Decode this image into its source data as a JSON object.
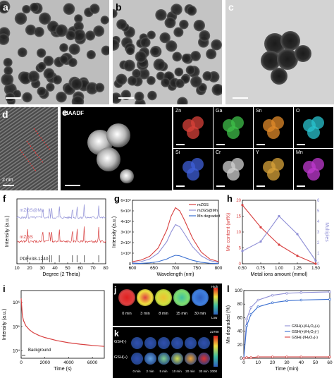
{
  "panels": {
    "a": {
      "label": "a"
    },
    "b": {
      "label": "b"
    },
    "c": {
      "label": "c"
    },
    "d": {
      "label": "d",
      "scale_text": "2 nm"
    },
    "e": {
      "label": "e",
      "haadf": "HAADF",
      "elements": [
        "Zn",
        "Ga",
        "Sn",
        "O",
        "Si",
        "Cr",
        "Y",
        "Mn"
      ],
      "element_colors": [
        "#d8413a",
        "#3fbf4a",
        "#e08a2a",
        "#29c3cf",
        "#3f5fd8",
        "#d0d0d0",
        "#d8a33a",
        "#c03ad0"
      ]
    },
    "f": {
      "label": "f"
    },
    "g": {
      "label": "g"
    },
    "h": {
      "label": "h"
    },
    "i": {
      "label": "i"
    },
    "j": {
      "label": "j",
      "times": [
        "0 min",
        "3 min",
        "8 min",
        "15 min",
        "30 min"
      ],
      "scale_high": "High",
      "scale_low": "Low"
    },
    "k": {
      "label": "k",
      "rows": [
        "GSH(-)",
        "GSH(+)"
      ],
      "times": [
        "0 min",
        "2 min",
        "5 min",
        "10 min",
        "20 min",
        "30 min"
      ],
      "scale_max": "22700",
      "scale_min": "2000"
    },
    "l": {
      "label": "l"
    }
  },
  "chart_data": [
    {
      "id": "f",
      "type": "line",
      "xlabel": "Degree (2 Theta)",
      "ylabel": "Intensity (a.u.)",
      "xlim": [
        10,
        80
      ],
      "xticks": [
        10,
        20,
        30,
        40,
        50,
        60,
        70,
        80
      ],
      "series": [
        {
          "name": "mZGS@Mn",
          "color": "#8f8fd6"
        },
        {
          "name": "mZGS",
          "color": "#d84040"
        },
        {
          "name": "PDF#38-1240",
          "color": "#333333"
        }
      ],
      "reference_peaks": [
        18.4,
        30.3,
        35.7,
        37.3,
        43.4,
        53.8,
        57.4,
        63.0,
        74.5
      ]
    },
    {
      "id": "g",
      "type": "line",
      "xlabel": "Wavelength (nm)",
      "ylabel": "Intensity (a.u.)",
      "xlim": [
        600,
        800
      ],
      "ylim": [
        0,
        6000000
      ],
      "xticks": [
        600,
        650,
        700,
        750,
        800
      ],
      "yticks": [
        "0",
        "1×10⁶",
        "2×10⁶",
        "3×10⁶",
        "4×10⁶",
        "5×10⁶",
        "6×10⁶"
      ],
      "series": [
        {
          "name": "mZGS",
          "color": "#d84040",
          "x": [
            600,
            620,
            640,
            660,
            680,
            690,
            700,
            710,
            720,
            740,
            760,
            780,
            800
          ],
          "y": [
            200000,
            350000,
            700000,
            1500000,
            3200000,
            4500000,
            5300000,
            5000000,
            4200000,
            2400000,
            1100000,
            450000,
            200000
          ]
        },
        {
          "name": "mZGS@Mn",
          "color": "#8f8fd6",
          "x": [
            600,
            620,
            640,
            660,
            680,
            690,
            700,
            710,
            720,
            740,
            760,
            780,
            800
          ],
          "y": [
            100000,
            200000,
            450000,
            1000000,
            2100000,
            3000000,
            3700000,
            3500000,
            2900000,
            1600000,
            750000,
            300000,
            120000
          ]
        },
        {
          "name": "Mn degraded",
          "color": "#3a6fd0",
          "x": [
            600,
            620,
            640,
            660,
            680,
            690,
            700,
            710,
            720,
            740,
            760,
            780,
            800
          ],
          "y": [
            20000,
            40000,
            90000,
            200000,
            450000,
            650000,
            800000,
            750000,
            600000,
            320000,
            140000,
            50000,
            20000
          ]
        }
      ]
    },
    {
      "id": "h",
      "type": "line",
      "xlabel": "Metal ions amount (mmol)",
      "ylabel": "Mn content (wt%)",
      "ylabel_right": "Multiples",
      "xlim": [
        0.5,
        1.5
      ],
      "ylim": [
        0,
        20
      ],
      "ylim_right": [
        0,
        6
      ],
      "xticks": [
        0.5,
        0.75,
        1.0,
        1.25,
        1.5
      ],
      "yticks": [
        0,
        5,
        10,
        15,
        20
      ],
      "yticks_right": [
        0,
        1,
        2,
        3,
        4,
        5,
        6
      ],
      "series": [
        {
          "name": "Mn content",
          "color": "#d84040",
          "x": [
            0.5,
            0.75,
            1.0,
            1.25,
            1.5
          ],
          "y": [
            18.5,
            11.5,
            6.0,
            2.5,
            0
          ]
        },
        {
          "name": "Multiples",
          "color": "#8f8fd6",
          "axis": "right",
          "x": [
            0.5,
            0.75,
            1.0,
            1.25,
            1.5
          ],
          "y": [
            1.2,
            2.1,
            4.5,
            2.8,
            0.3
          ]
        }
      ]
    },
    {
      "id": "i",
      "type": "line",
      "xlabel": "Time (s)",
      "ylabel": "Intensity (a.u.)",
      "xlim": [
        0,
        7000
      ],
      "yscale": "log",
      "xticks": [
        0,
        2000,
        4000,
        6000
      ],
      "yticks": [
        "10⁴",
        "10⁵",
        "10⁶"
      ],
      "annotation": "Background",
      "series": [
        {
          "name": "afterglow",
          "color": "#d84040",
          "x": [
            0,
            100,
            200,
            400,
            700,
            1000,
            1500,
            2000,
            3000,
            4000,
            5000,
            6000,
            7000
          ],
          "y": [
            1500000,
            300000,
            180000,
            110000,
            75000,
            58000,
            44000,
            36000,
            27000,
            22000,
            19000,
            17000,
            15500
          ]
        }
      ]
    },
    {
      "id": "l",
      "type": "line",
      "xlabel": "Time (min)",
      "ylabel": "Mn degraded (%)",
      "xlim": [
        0,
        60
      ],
      "ylim": [
        0,
        100
      ],
      "xticks": [
        0,
        10,
        20,
        30,
        40,
        50,
        60
      ],
      "yticks": [
        0,
        20,
        40,
        60,
        80,
        100
      ],
      "series": [
        {
          "name": "GSH(+)/H₂O₂(+)",
          "color": "#8f8fd6",
          "x": [
            0,
            2,
            5,
            10,
            20,
            30,
            40,
            60
          ],
          "y": [
            0,
            58,
            75,
            86,
            93,
            96,
            97,
            98
          ]
        },
        {
          "name": "GSH(+)/H₂O₂(-)",
          "color": "#3a6fd0",
          "x": [
            0,
            2,
            5,
            10,
            20,
            30,
            40,
            60
          ],
          "y": [
            0,
            48,
            65,
            76,
            82,
            85,
            86,
            87
          ]
        },
        {
          "name": "GSH(-)/H₂O₂(-)",
          "color": "#d84040",
          "x": [
            0,
            2,
            5,
            10,
            20,
            30,
            40,
            60
          ],
          "y": [
            0,
            1,
            1,
            2,
            2,
            2,
            2,
            2
          ]
        }
      ]
    }
  ]
}
